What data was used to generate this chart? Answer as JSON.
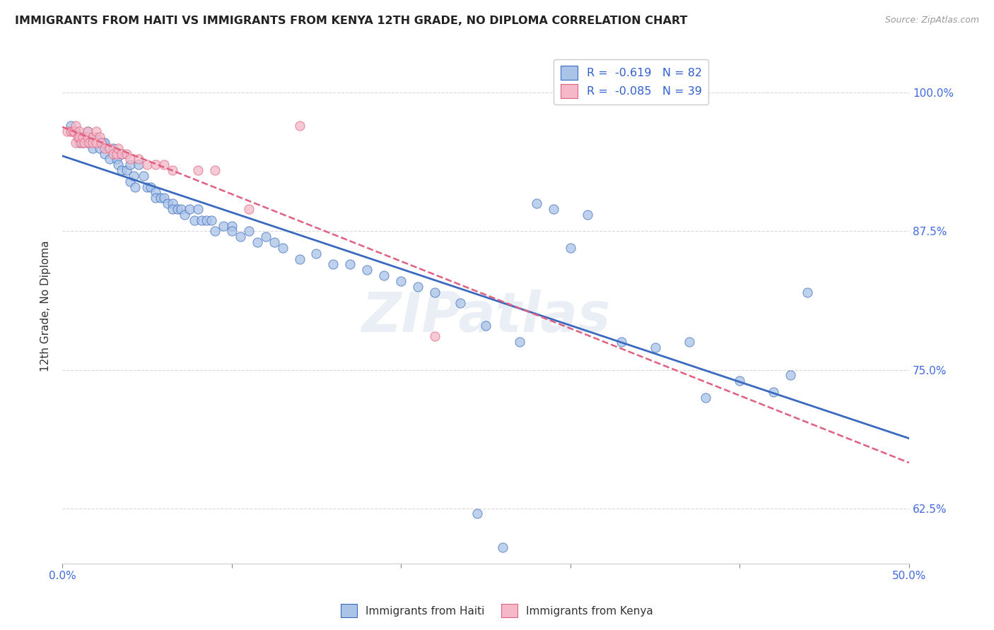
{
  "title": "IMMIGRANTS FROM HAITI VS IMMIGRANTS FROM KENYA 12TH GRADE, NO DIPLOMA CORRELATION CHART",
  "source": "Source: ZipAtlas.com",
  "ylabel": "12th Grade, No Diploma",
  "yticks": [
    "100.0%",
    "87.5%",
    "75.0%",
    "62.5%"
  ],
  "ytick_vals": [
    1.0,
    0.875,
    0.75,
    0.625
  ],
  "xlim": [
    0.0,
    0.5
  ],
  "ylim": [
    0.575,
    1.04
  ],
  "color_haiti": "#aac4e8",
  "color_kenya": "#f5b8c8",
  "trendline_haiti_color": "#3a6abf",
  "trendline_kenya_color": "#e06080",
  "haiti_scatter_x": [
    0.005,
    0.007,
    0.008,
    0.01,
    0.01,
    0.012,
    0.013,
    0.015,
    0.015,
    0.018,
    0.02,
    0.022,
    0.024,
    0.025,
    0.025,
    0.028,
    0.03,
    0.032,
    0.033,
    0.035,
    0.035,
    0.038,
    0.04,
    0.04,
    0.042,
    0.043,
    0.045,
    0.048,
    0.05,
    0.052,
    0.055,
    0.055,
    0.058,
    0.06,
    0.062,
    0.065,
    0.065,
    0.068,
    0.07,
    0.072,
    0.075,
    0.078,
    0.08,
    0.082,
    0.085,
    0.088,
    0.09,
    0.095,
    0.1,
    0.1,
    0.105,
    0.11,
    0.115,
    0.12,
    0.125,
    0.13,
    0.14,
    0.15,
    0.16,
    0.17,
    0.18,
    0.19,
    0.2,
    0.21,
    0.22,
    0.235,
    0.25,
    0.27,
    0.29,
    0.3,
    0.31,
    0.33,
    0.35,
    0.37,
    0.38,
    0.4,
    0.42,
    0.43,
    0.44,
    0.245,
    0.26,
    0.28
  ],
  "haiti_scatter_y": [
    0.97,
    0.965,
    0.965,
    0.96,
    0.955,
    0.955,
    0.96,
    0.955,
    0.965,
    0.95,
    0.96,
    0.95,
    0.955,
    0.955,
    0.945,
    0.94,
    0.95,
    0.94,
    0.935,
    0.945,
    0.93,
    0.93,
    0.935,
    0.92,
    0.925,
    0.915,
    0.935,
    0.925,
    0.915,
    0.915,
    0.91,
    0.905,
    0.905,
    0.905,
    0.9,
    0.9,
    0.895,
    0.895,
    0.895,
    0.89,
    0.895,
    0.885,
    0.895,
    0.885,
    0.885,
    0.885,
    0.875,
    0.88,
    0.88,
    0.875,
    0.87,
    0.875,
    0.865,
    0.87,
    0.865,
    0.86,
    0.85,
    0.855,
    0.845,
    0.845,
    0.84,
    0.835,
    0.83,
    0.825,
    0.82,
    0.81,
    0.79,
    0.775,
    0.895,
    0.86,
    0.89,
    0.775,
    0.77,
    0.775,
    0.725,
    0.74,
    0.73,
    0.745,
    0.82,
    0.62,
    0.59,
    0.9
  ],
  "kenya_scatter_x": [
    0.003,
    0.005,
    0.006,
    0.007,
    0.008,
    0.008,
    0.009,
    0.01,
    0.01,
    0.011,
    0.012,
    0.013,
    0.015,
    0.015,
    0.016,
    0.018,
    0.018,
    0.02,
    0.02,
    0.022,
    0.023,
    0.025,
    0.028,
    0.03,
    0.032,
    0.033,
    0.035,
    0.038,
    0.04,
    0.045,
    0.05,
    0.055,
    0.06,
    0.065,
    0.08,
    0.09,
    0.11,
    0.14,
    0.22
  ],
  "kenya_scatter_y": [
    0.965,
    0.965,
    0.965,
    0.965,
    0.97,
    0.955,
    0.96,
    0.965,
    0.96,
    0.955,
    0.96,
    0.955,
    0.96,
    0.965,
    0.955,
    0.96,
    0.955,
    0.965,
    0.955,
    0.96,
    0.955,
    0.95,
    0.95,
    0.945,
    0.945,
    0.95,
    0.945,
    0.945,
    0.94,
    0.94,
    0.935,
    0.935,
    0.935,
    0.93,
    0.93,
    0.93,
    0.895,
    0.97,
    0.78
  ],
  "watermark": "ZIPatlas",
  "background_color": "#ffffff",
  "grid_color": "#d8d8d8",
  "legend_labels": [
    "R =  -0.619   N = 82",
    "R =  -0.085   N = 39"
  ],
  "bottom_legend_labels": [
    "Immigrants from Haiti",
    "Immigrants from Kenya"
  ]
}
